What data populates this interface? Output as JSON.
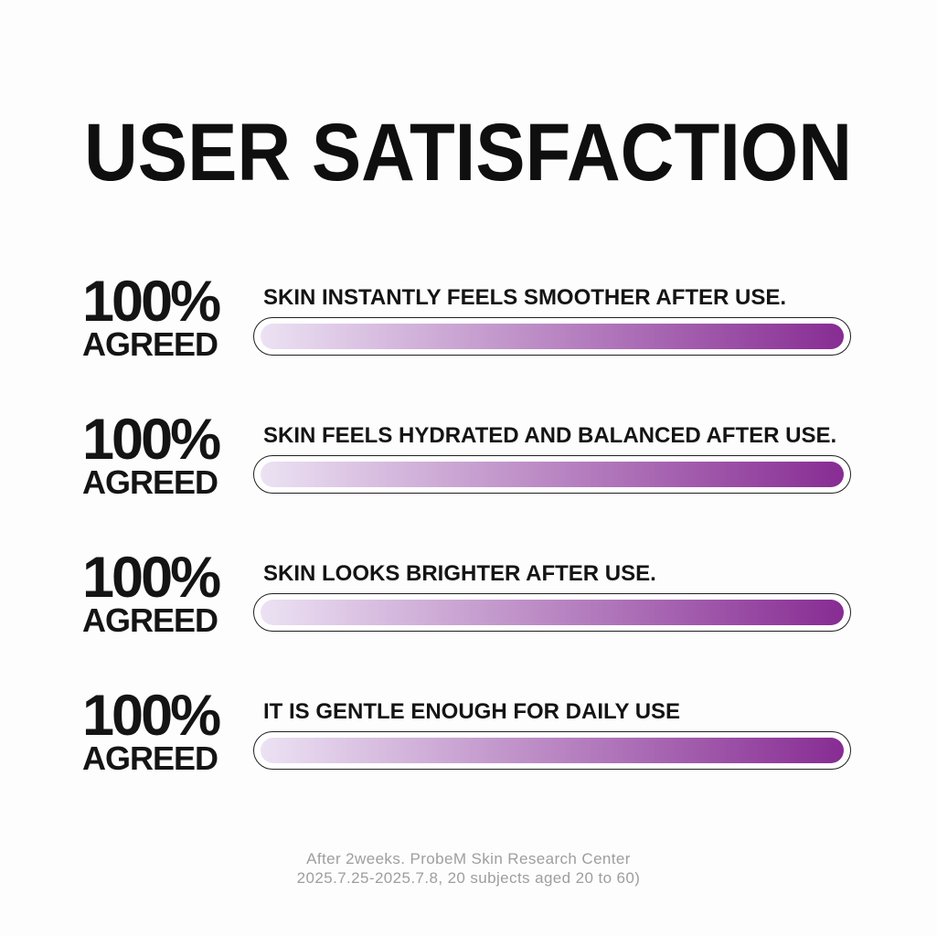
{
  "title": "USER SATISFACTION",
  "agreed_word": "AGREED",
  "rows": [
    {
      "percent": "100%",
      "agreed_label": "AGREED",
      "statement": "SKIN INSTANTLY FEELS SMOOTHER AFTER USE.",
      "value_percent": 100
    },
    {
      "percent": "100%",
      "agreed_label": "AGREED",
      "statement": "SKIN FEELS HYDRATED AND BALANCED AFTER USE.",
      "value_percent": 100
    },
    {
      "percent": "100%",
      "agreed_label": "AGREED",
      "statement": "SKIN LOOKS BRIGHTER AFTER USE.",
      "value_percent": 100
    },
    {
      "percent": "100%",
      "agreed_label": "AGREED",
      "statement": "IT IS GENTLE ENOUGH FOR DAILY USE",
      "value_percent": 100
    }
  ],
  "footer": {
    "line1": "After 2weeks. ProbeM Skin Research Center",
    "line2": "2025.7.25-2025.7.8, 20 subjects aged 20 to 60)"
  },
  "colors": {
    "background": "#fdfdfd",
    "text": "#141414",
    "bar_border": "#1f1f1f",
    "bar_track": "#ffffff",
    "bar_gradient_start": "#ece2f3",
    "bar_gradient_end": "#872c93",
    "footer_text": "#9e9e9e"
  },
  "chart_data": {
    "type": "bar",
    "orientation": "horizontal",
    "title": "USER SATISFACTION",
    "categories": [
      "SKIN INSTANTLY FEELS SMOOTHER AFTER USE.",
      "SKIN FEELS HYDRATED AND BALANCED AFTER USE.",
      "SKIN LOOKS BRIGHTER AFTER USE.",
      "IT IS GENTLE ENOUGH FOR DAILY USE"
    ],
    "series": [
      {
        "name": "AGREED",
        "values": [
          100,
          100,
          100,
          100
        ]
      }
    ],
    "unit": "%",
    "xlim": [
      0,
      100
    ],
    "value_labels": [
      "100% AGREED",
      "100% AGREED",
      "100% AGREED",
      "100% AGREED"
    ],
    "grid": false,
    "legend": false,
    "note": "After 2weeks. ProbeM Skin Research Center 2025.7.25-2025.7.8, 20 subjects aged 20 to 60)"
  }
}
